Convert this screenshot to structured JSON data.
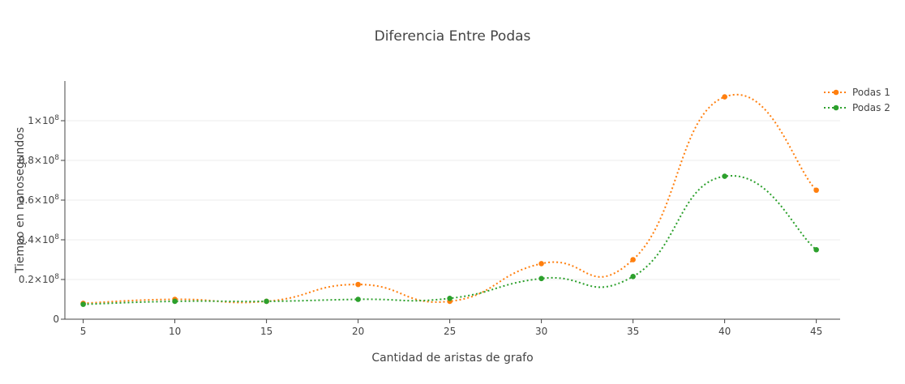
{
  "chart_data": {
    "type": "line",
    "title": "Diferencia Entre Podas",
    "xlabel": "Cantidad de aristas de grafo",
    "ylabel": "Tiempo en nanosegundos",
    "x": [
      5,
      10,
      15,
      20,
      25,
      30,
      35,
      40,
      45
    ],
    "x_ticks": [
      5,
      10,
      15,
      20,
      25,
      30,
      35,
      40,
      45
    ],
    "xlim": [
      4,
      46.3
    ],
    "ylim": [
      0,
      120000000
    ],
    "y_ticks": [
      {
        "value": 0,
        "label": "0",
        "exp": ""
      },
      {
        "value": 20000000,
        "label": "0.2×10",
        "exp": "8"
      },
      {
        "value": 40000000,
        "label": "0.4×10",
        "exp": "8"
      },
      {
        "value": 60000000,
        "label": "0.6×10",
        "exp": "8"
      },
      {
        "value": 80000000,
        "label": "0.8×10",
        "exp": "8"
      },
      {
        "value": 100000000,
        "label": "1×10",
        "exp": "8"
      }
    ],
    "grid": true,
    "legend_position": "top-right",
    "line_style": "dotted-spline-with-markers",
    "series": [
      {
        "name": "Podas 1",
        "color": "#ff7f0e",
        "values": [
          8000000,
          10000000,
          9000000,
          17500000,
          9000000,
          28000000,
          30000000,
          112000000,
          65000000
        ]
      },
      {
        "name": "Podas 2",
        "color": "#2ca02c",
        "values": [
          7500000,
          9000000,
          9000000,
          10000000,
          10500000,
          20500000,
          21500000,
          72000000,
          35000000
        ]
      }
    ]
  }
}
